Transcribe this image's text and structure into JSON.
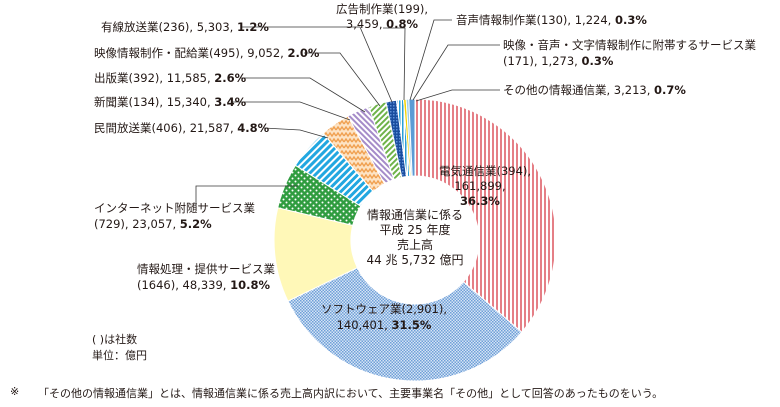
{
  "chart_data": {
    "type": "donut",
    "center_lines": [
      "情報通信業に係る",
      "平成 25 年度",
      "売上高",
      "44 兆 5,732 億円"
    ],
    "segments": [
      {
        "name": "電気通信業",
        "count": "394",
        "amount": "161,899",
        "percent": 36.3,
        "percent_label": "36.3%",
        "color": "#e9a3a7",
        "pattern": "vlines-red"
      },
      {
        "name": "ソフトウェア業",
        "count": "2,901",
        "amount": "140,401",
        "percent": 31.5,
        "percent_label": "31.5%",
        "color": "#8fb4e0",
        "pattern": "grid-blue"
      },
      {
        "name": "情報処理・提供サービス業",
        "count": "1646",
        "amount": "48,339",
        "percent": 10.8,
        "percent_label": "10.8%",
        "color": "#fff8b8",
        "pattern": "solid-yellow"
      },
      {
        "name": "インターネット附随サービス業",
        "count": "729",
        "amount": "23,057",
        "percent": 5.2,
        "percent_label": "5.2%",
        "color": "#2f9c3f",
        "pattern": "dots-green"
      },
      {
        "name": "民間放送業",
        "count": "406",
        "amount": "21,587",
        "percent": 4.8,
        "percent_label": "4.8%",
        "color": "#29a9e0",
        "pattern": "diag-cyan"
      },
      {
        "name": "新聞業",
        "count": "134",
        "amount": "15,340",
        "percent": 3.4,
        "percent_label": "3.4%",
        "color": "#f6b26b",
        "pattern": "zigzag-orange"
      },
      {
        "name": "出版業",
        "count": "392",
        "amount": "11,585",
        "percent": 2.6,
        "percent_label": "2.6%",
        "color": "#b49bd1",
        "pattern": "diag-purple"
      },
      {
        "name": "映像情報制作・配給業",
        "count": "495",
        "amount": "9,052",
        "percent": 2.0,
        "percent_label": "2.0%",
        "color": "#8fc35a",
        "pattern": "diag-green"
      },
      {
        "name": "有線放送業",
        "count": "236",
        "amount": "5,303",
        "percent": 1.2,
        "percent_label": "1.2%",
        "color": "#1a5fb4",
        "pattern": "grid-navy"
      },
      {
        "name": "広告制作業",
        "count": "199",
        "amount": "3,459",
        "percent": 0.8,
        "percent_label": "0.8%",
        "color": "#2a9fd6",
        "pattern": "vlines-blue"
      },
      {
        "name": "音声情報制作業",
        "count": "130",
        "amount": "1,224",
        "percent": 0.3,
        "percent_label": "0.3%",
        "color": "#f5d300",
        "pattern": "solid-gold"
      },
      {
        "name": "映像・音声・文字情報制作に附帯するサービス業",
        "count": "171",
        "amount": "1,273",
        "percent": 0.3,
        "percent_label": "0.3%",
        "color": "#9ccfe8",
        "pattern": "solid-lightblue"
      },
      {
        "name": "その他の情報通信業",
        "count": "",
        "amount": "3,213",
        "percent": 0.7,
        "percent_label": "0.7%",
        "color": "#5b9bd5",
        "pattern": "solid-blue"
      }
    ]
  },
  "labels": {
    "denki": {
      "line1": "電気通信業(394),",
      "line2": "161,899,",
      "pct": "36.3%"
    },
    "software": {
      "line1": "ソフトウェア業(2,901),",
      "line2a": "140,401, ",
      "pct": "31.5%"
    },
    "joho": {
      "line1": "情報処理・提供サービス業",
      "line2": "(1646), 48,339, ",
      "pct": "10.8%"
    },
    "internet": {
      "line1": "インターネット附随サービス業",
      "line2": "(729), 23,057, ",
      "pct": "5.2%"
    },
    "minkan": {
      "text": "民間放送業(406), 21,587, ",
      "pct": "4.8%"
    },
    "shinbun": {
      "text": "新聞業(134), 15,340, ",
      "pct": "3.4%"
    },
    "shuppan": {
      "text": "出版業(392), 11,585, ",
      "pct": "2.6%"
    },
    "eizo": {
      "text": "映像情報制作・配給業(495), 9,052, ",
      "pct": "2.0%"
    },
    "yusen": {
      "text": "有線放送業(236), 5,303, ",
      "pct": "1.2%"
    },
    "kokoku": {
      "line1": "広告制作業(199),",
      "line2": "3,459, ",
      "pct": "0.8%"
    },
    "onsei": {
      "text": "音声情報制作業(130), 1,224, ",
      "pct": "0.3%"
    },
    "futai": {
      "line1": "映像・音声・文字情報制作に附帯するサービス業",
      "line2": "(171), 1,273, ",
      "pct": "0.3%"
    },
    "sonota": {
      "text": "その他の情報通信業, 3,213, ",
      "pct": "0.7%"
    }
  },
  "notes": {
    "legend1": "(   )は社数",
    "legend2": "単位：億円",
    "footnote_mark": "※",
    "footnote": "「その他の情報通信業」とは、情報通信業に係る売上高内訳において、主要事業名「その他」として回答のあったものをいう。"
  }
}
